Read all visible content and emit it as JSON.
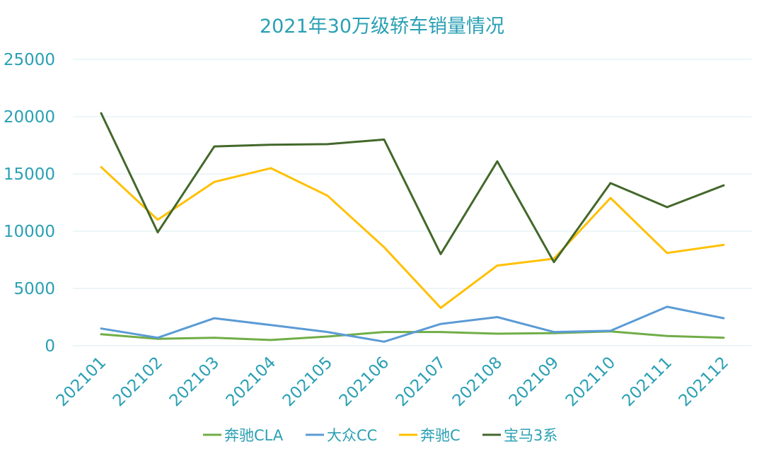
{
  "chart_data": {
    "type": "line",
    "title": "2021年30万级轿车销量情况",
    "categories": [
      "202101",
      "202102",
      "202103",
      "202104",
      "202105",
      "202106",
      "202107",
      "202108",
      "202109",
      "202110",
      "202111",
      "202112"
    ],
    "ylim": [
      0,
      25000
    ],
    "yticks": [
      0,
      5000,
      10000,
      15000,
      20000,
      25000
    ],
    "grid": true,
    "legend_position": "bottom",
    "series": [
      {
        "name": "奔驰CLA",
        "color": "#70ad47",
        "values": [
          1000,
          600,
          700,
          500,
          800,
          1200,
          1200,
          1050,
          1100,
          1250,
          850,
          700
        ]
      },
      {
        "name": "大众CC",
        "color": "#5b9bd5",
        "values": [
          1500,
          700,
          2400,
          1800,
          1200,
          350,
          1900,
          2500,
          1200,
          1300,
          3400,
          2400
        ]
      },
      {
        "name": "奔驰C",
        "color": "#ffc000",
        "values": [
          15600,
          11000,
          14300,
          15500,
          13100,
          8600,
          3300,
          7000,
          7600,
          12900,
          8100,
          8800
        ]
      },
      {
        "name": "宝马3系",
        "color": "#43682b",
        "values": [
          20300,
          9900,
          17400,
          17550,
          17600,
          18000,
          8000,
          16100,
          7300,
          14200,
          12100,
          14000
        ]
      }
    ]
  }
}
